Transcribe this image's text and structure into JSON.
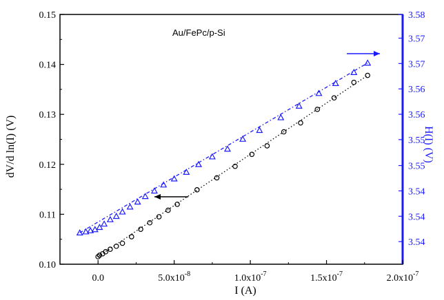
{
  "colors": {
    "left_axis": "#000000",
    "right_axis": "#1a1aff",
    "circle_series": "#000000",
    "triangle_series": "#1a1aff"
  },
  "chart_data": {
    "type": "scatter",
    "annotation": "Au/FePc/p-Si",
    "xlabel": "I (A)",
    "ylabel": "dV/d ln(I)  (V)",
    "y2label": "H(I)  (V)",
    "xlim": [
      -2.5e-08,
      2e-07
    ],
    "ylim": [
      0.1,
      0.15
    ],
    "y2lim": [
      3.5347,
      3.58
    ],
    "x_tick_values": [
      0,
      5e-08,
      1e-07,
      1.5e-07,
      2e-07
    ],
    "x_tick_labels": [
      "0.0",
      "5.0x10-8",
      "1.0x10-7",
      "1.5x10-7",
      "2.0x10-7"
    ],
    "y_tick_values": [
      0.1,
      0.11,
      0.12,
      0.13,
      0.14,
      0.15
    ],
    "y_tick_labels": [
      "0.10",
      "0.11",
      "0.12",
      "0.13",
      "0.14",
      "0.15"
    ],
    "y2_tick_values": [
      3.5388,
      3.5434,
      3.548,
      3.5526,
      3.5573,
      3.5619,
      3.5665,
      3.5711,
      3.5757,
      3.58
    ],
    "y2_tick_labels": [
      "3.54",
      "3.54",
      "3.54",
      "3.55",
      "3.55",
      "3.56",
      "3.56",
      "3.57",
      "3.57",
      "3.58"
    ],
    "series": [
      {
        "marker": "circle",
        "axis": "left",
        "x": [
          0,
          1e-09,
          3e-09,
          5e-09,
          8e-09,
          1.2e-08,
          1.6e-08,
          2.2e-08,
          2.8e-08,
          3.4e-08,
          4e-08,
          4.6e-08,
          5.2e-08,
          6.5e-08,
          7.8e-08,
          9e-08,
          1.01e-07,
          1.11e-07,
          1.22e-07,
          1.33e-07,
          1.44e-07,
          1.55e-07,
          1.68e-07,
          1.77e-07
        ],
        "y": [
          0.1015,
          0.1018,
          0.1021,
          0.1025,
          0.103,
          0.1036,
          0.1042,
          0.1055,
          0.107,
          0.1083,
          0.1095,
          0.1108,
          0.112,
          0.1149,
          0.1173,
          0.1196,
          0.122,
          0.1237,
          0.1265,
          0.1283,
          0.131,
          0.1333,
          0.1364,
          0.1378
        ]
      },
      {
        "marker": "triangle",
        "axis": "right",
        "x": [
          -1.2e-08,
          -8e-09,
          -5e-09,
          -2e-09,
          1e-09,
          4e-09,
          8e-09,
          1.2e-08,
          1.6e-08,
          2.1e-08,
          2.6e-08,
          3.1e-08,
          3.7e-08,
          4.3e-08,
          5e-08,
          5.8e-08,
          6.6e-08,
          7.5e-08,
          8.5e-08,
          9.5e-08,
          1.06e-07,
          1.2e-07,
          1.32e-07,
          1.45e-07,
          1.56e-07,
          1.68e-07,
          1.77e-07
        ],
        "y": [
          3.5404,
          3.5406,
          3.5408,
          3.541,
          3.5414,
          3.542,
          3.5428,
          3.5434,
          3.5442,
          3.5451,
          3.546,
          3.547,
          3.548,
          3.5491,
          3.5502,
          3.5514,
          3.5528,
          3.5542,
          3.5556,
          3.5574,
          3.559,
          3.5613,
          3.5634,
          3.5657,
          3.5675,
          3.5695,
          3.5712
        ]
      }
    ]
  }
}
